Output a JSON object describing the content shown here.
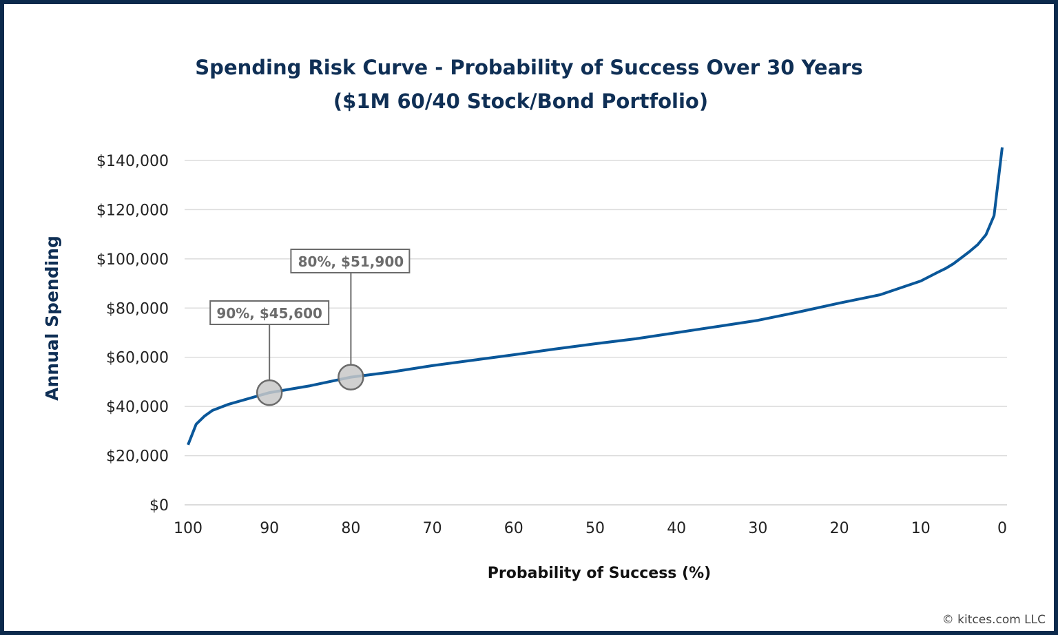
{
  "chart_data": {
    "type": "line",
    "title": "Spending Risk Curve - Probability of Success Over 30 Years",
    "subtitle": "($1M 60/40 Stock/Bond Portfolio)",
    "xlabel": "Probability of Success (%)",
    "ylabel": "Annual Spending",
    "xlim": [
      100,
      0
    ],
    "ylim": [
      0,
      140000
    ],
    "x_reversed": true,
    "grid": "horizontal",
    "xticks": [
      "100",
      "90",
      "80",
      "70",
      "60",
      "50",
      "40",
      "30",
      "20",
      "10",
      "0"
    ],
    "yticks": [
      "$0",
      "$20,000",
      "$40,000",
      "$60,000",
      "$80,000",
      "$100,000",
      "$120,000",
      "$140,000"
    ],
    "series": [
      {
        "color": "#0a5799",
        "x": [
          100,
          99,
          98,
          97,
          95,
          90,
          85,
          80,
          75,
          70,
          65,
          60,
          55,
          50,
          45,
          40,
          35,
          30,
          25,
          20,
          15,
          10,
          8,
          7,
          6,
          5,
          4,
          3,
          2,
          1,
          0
        ],
        "y": [
          24400,
          32800,
          36000,
          38400,
          40900,
          45600,
          48400,
          51900,
          54000,
          56600,
          58800,
          61000,
          63300,
          65500,
          67500,
          70000,
          72500,
          75000,
          78400,
          82000,
          85400,
          91000,
          94400,
          96000,
          98000,
          100500,
          103000,
          105800,
          109800,
          117600,
          145300
        ]
      }
    ],
    "annotations": [
      {
        "x": 90,
        "y": 45600,
        "label": "90%, $45,600"
      },
      {
        "x": 80,
        "y": 51900,
        "label": "80%, $51,900"
      }
    ],
    "marker_color": "#c8c8c8"
  },
  "footer": {
    "copyright": "© kitces.com LLC"
  }
}
